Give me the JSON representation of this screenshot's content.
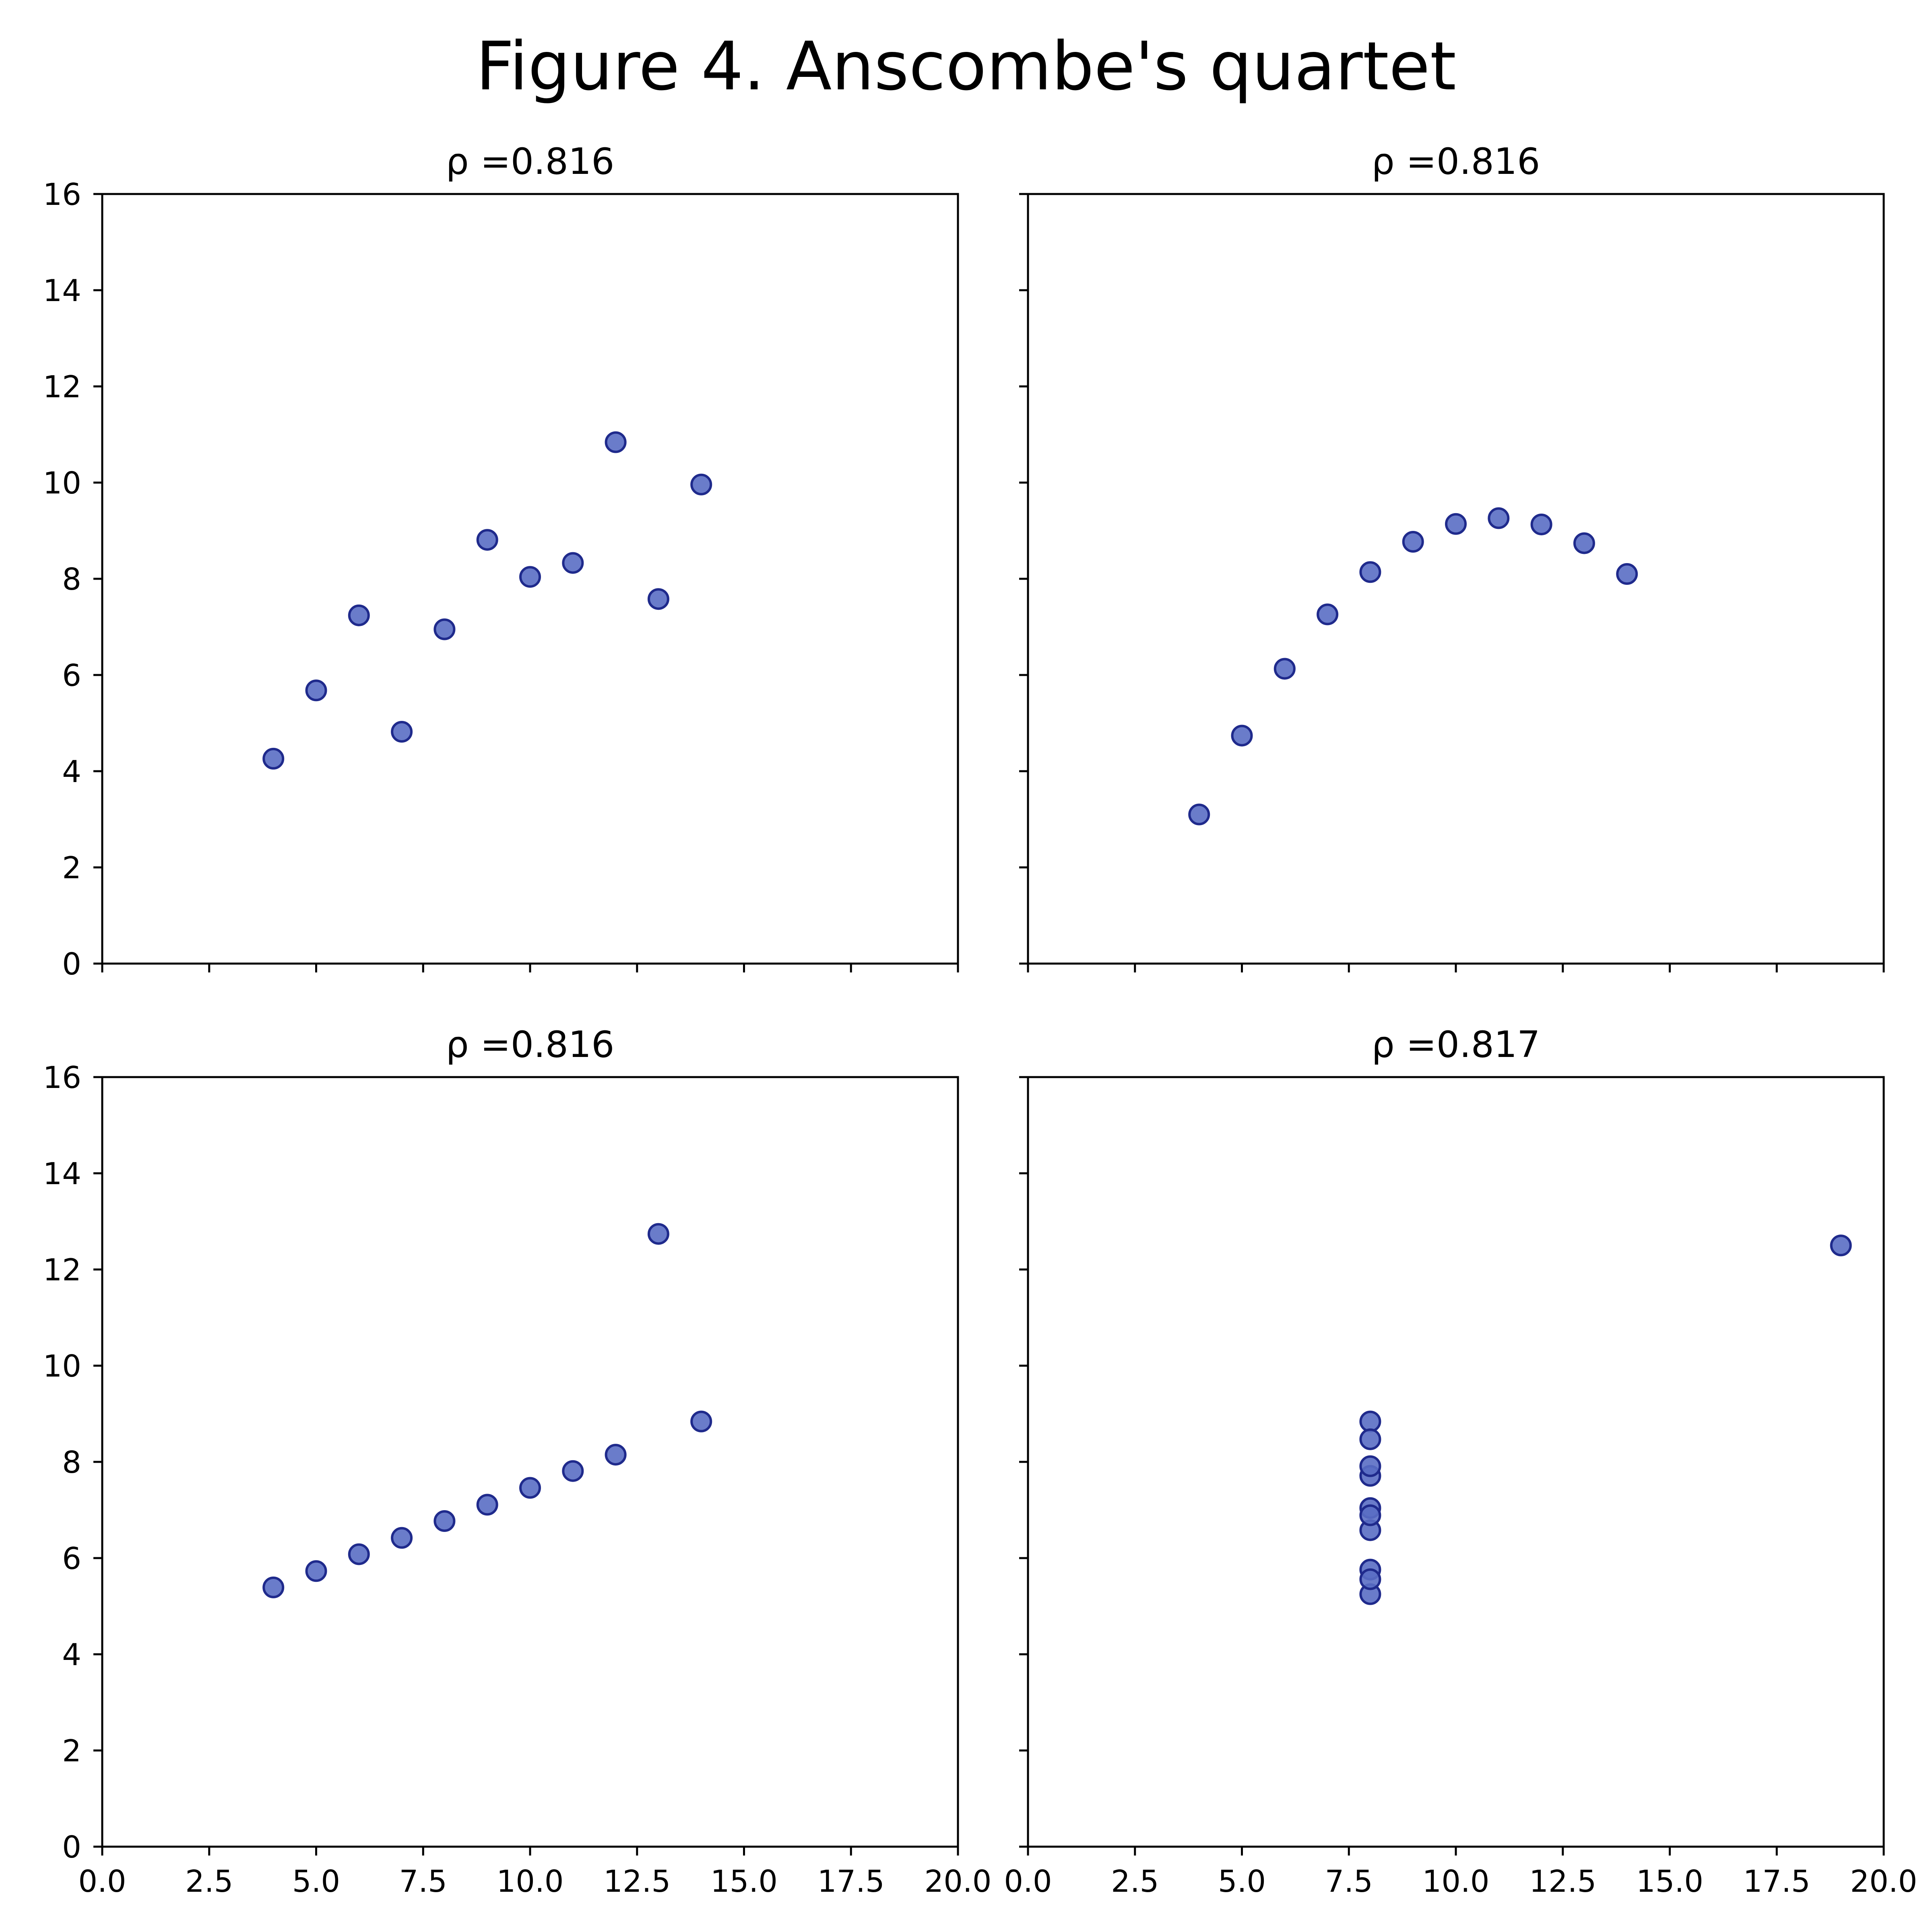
{
  "figure": {
    "title": "Figure 4. Anscombe's quartet"
  },
  "style": {
    "marker_fill": "#5a6ec4",
    "marker_edge": "#1f2a8c",
    "axis_color": "#000000",
    "background": "#ffffff"
  },
  "chart_data": [
    {
      "type": "scatter",
      "title": "ρ =0.816",
      "xlim": [
        0,
        20
      ],
      "ylim": [
        0,
        16
      ],
      "x_ticks": [
        "0.0",
        "2.5",
        "5.0",
        "7.5",
        "10.0",
        "12.5",
        "15.0",
        "17.5",
        "20.0"
      ],
      "y_ticks": [
        "0",
        "2",
        "4",
        "6",
        "8",
        "10",
        "12",
        "14",
        "16"
      ],
      "show_x_tick_labels": false,
      "show_y_tick_labels": true,
      "grid": false,
      "x": [
        10,
        8,
        13,
        9,
        11,
        14,
        6,
        4,
        12,
        7,
        5
      ],
      "y": [
        8.04,
        6.95,
        7.58,
        8.81,
        8.33,
        9.96,
        7.24,
        4.26,
        10.84,
        4.82,
        5.68
      ]
    },
    {
      "type": "scatter",
      "title": "ρ =0.816",
      "xlim": [
        0,
        20
      ],
      "ylim": [
        0,
        16
      ],
      "x_ticks": [
        "0.0",
        "2.5",
        "5.0",
        "7.5",
        "10.0",
        "12.5",
        "15.0",
        "17.5",
        "20.0"
      ],
      "y_ticks": [
        "0",
        "2",
        "4",
        "6",
        "8",
        "10",
        "12",
        "14",
        "16"
      ],
      "show_x_tick_labels": false,
      "show_y_tick_labels": false,
      "grid": false,
      "x": [
        10,
        8,
        13,
        9,
        11,
        14,
        6,
        4,
        12,
        7,
        5
      ],
      "y": [
        9.14,
        8.14,
        8.74,
        8.77,
        9.26,
        8.1,
        6.13,
        3.1,
        9.13,
        7.26,
        4.74
      ]
    },
    {
      "type": "scatter",
      "title": "ρ =0.816",
      "xlim": [
        0,
        20
      ],
      "ylim": [
        0,
        16
      ],
      "x_ticks": [
        "0.0",
        "2.5",
        "5.0",
        "7.5",
        "10.0",
        "12.5",
        "15.0",
        "17.5",
        "20.0"
      ],
      "y_ticks": [
        "0",
        "2",
        "4",
        "6",
        "8",
        "10",
        "12",
        "14",
        "16"
      ],
      "show_x_tick_labels": true,
      "show_y_tick_labels": true,
      "grid": false,
      "x": [
        10,
        8,
        13,
        9,
        11,
        14,
        6,
        4,
        12,
        7,
        5
      ],
      "y": [
        7.46,
        6.77,
        12.74,
        7.11,
        7.81,
        8.84,
        6.08,
        5.39,
        8.15,
        6.42,
        5.73
      ]
    },
    {
      "type": "scatter",
      "title": "ρ =0.817",
      "xlim": [
        0,
        20
      ],
      "ylim": [
        0,
        16
      ],
      "x_ticks": [
        "0.0",
        "2.5",
        "5.0",
        "7.5",
        "10.0",
        "12.5",
        "15.0",
        "17.5",
        "20.0"
      ],
      "y_ticks": [
        "0",
        "2",
        "4",
        "6",
        "8",
        "10",
        "12",
        "14",
        "16"
      ],
      "show_x_tick_labels": true,
      "show_y_tick_labels": false,
      "grid": false,
      "x": [
        8,
        8,
        8,
        8,
        8,
        8,
        8,
        19,
        8,
        8,
        8
      ],
      "y": [
        6.58,
        5.76,
        7.71,
        8.84,
        8.47,
        7.04,
        5.25,
        12.5,
        5.56,
        7.91,
        6.89
      ]
    }
  ]
}
